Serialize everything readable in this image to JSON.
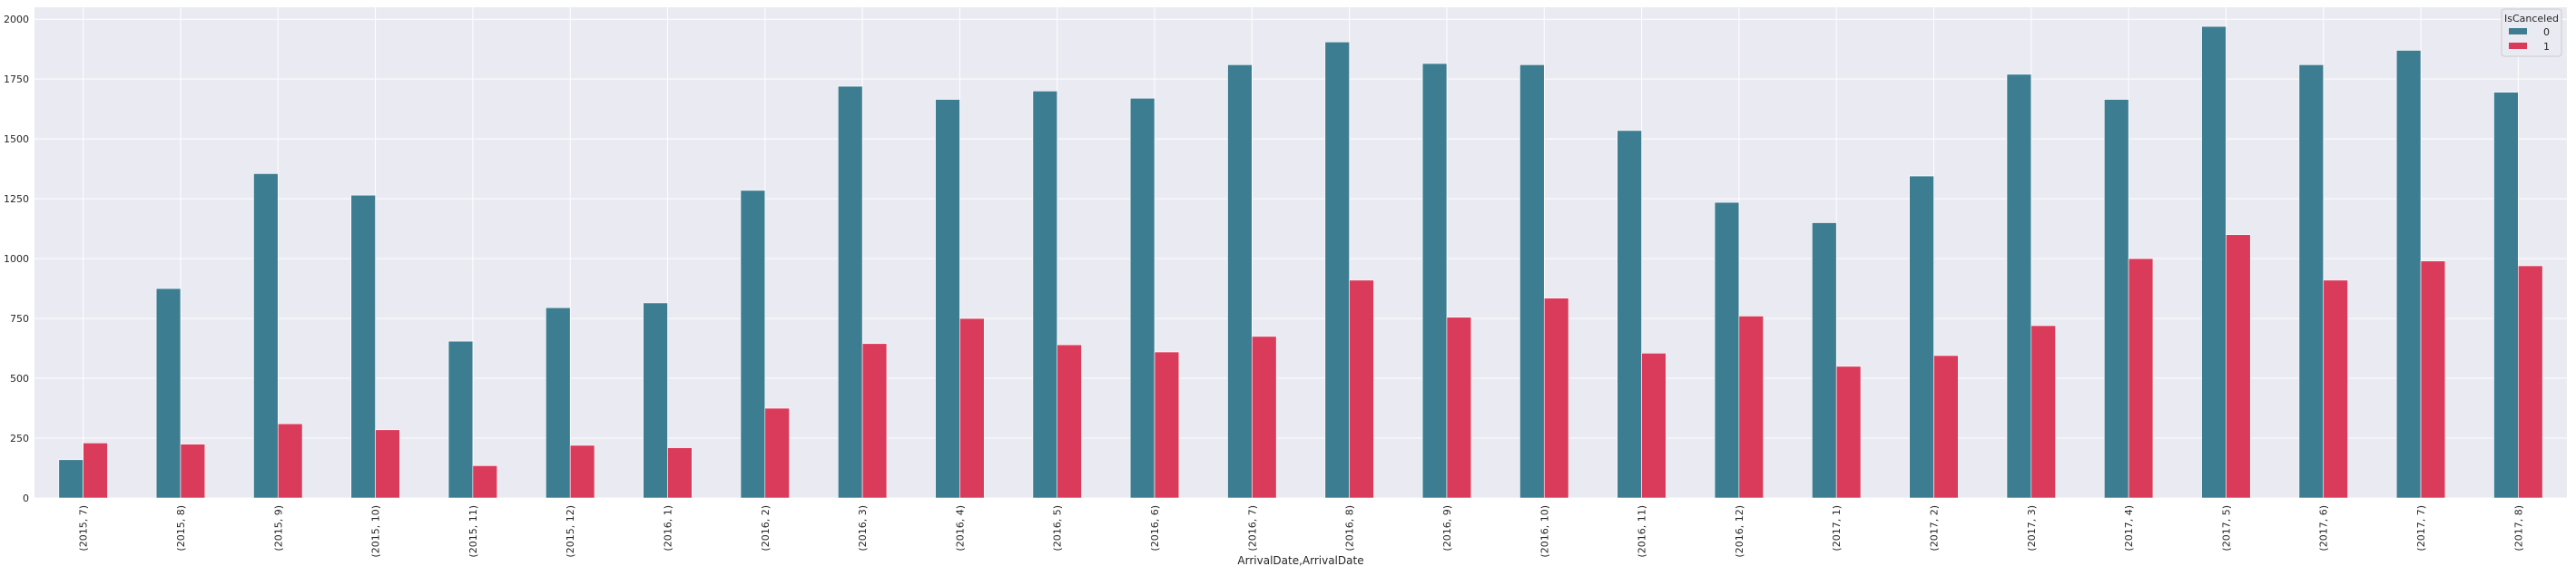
{
  "colors": {
    "background": "#eaeaf2",
    "grid": "#ffffff",
    "series_0": "#3d7d91",
    "series_1": "#db3b5a"
  },
  "chart_data": {
    "type": "bar",
    "title": "",
    "xlabel": "ArrivalDate,ArrivalDate",
    "ylabel": "",
    "ylim": [
      0,
      2050
    ],
    "yticks": [
      0,
      250,
      500,
      750,
      1000,
      1250,
      1500,
      1750,
      2000
    ],
    "grid": true,
    "legend": {
      "title": "IsCanceled",
      "placement": "top-right"
    },
    "categories": [
      "(2015, 7)",
      "(2015, 8)",
      "(2015, 9)",
      "(2015, 10)",
      "(2015, 11)",
      "(2015, 12)",
      "(2016, 1)",
      "(2016, 2)",
      "(2016, 3)",
      "(2016, 4)",
      "(2016, 5)",
      "(2016, 6)",
      "(2016, 7)",
      "(2016, 8)",
      "(2016, 9)",
      "(2016, 10)",
      "(2016, 11)",
      "(2016, 12)",
      "(2017, 1)",
      "(2017, 2)",
      "(2017, 3)",
      "(2017, 4)",
      "(2017, 5)",
      "(2017, 6)",
      "(2017, 7)",
      "(2017, 8)"
    ],
    "series": [
      {
        "name": "0",
        "color": "#3d7d91",
        "values": [
          160,
          875,
          1355,
          1265,
          655,
          795,
          815,
          1285,
          1720,
          1665,
          1700,
          1670,
          1810,
          1905,
          1815,
          1810,
          1535,
          1235,
          1150,
          1345,
          1770,
          1665,
          1970,
          1810,
          1870,
          1695
        ]
      },
      {
        "name": "1",
        "color": "#db3b5a",
        "values": [
          230,
          225,
          310,
          285,
          135,
          220,
          210,
          375,
          645,
          750,
          640,
          610,
          675,
          910,
          755,
          835,
          605,
          760,
          550,
          595,
          720,
          1000,
          1100,
          910,
          990,
          970
        ]
      }
    ]
  }
}
